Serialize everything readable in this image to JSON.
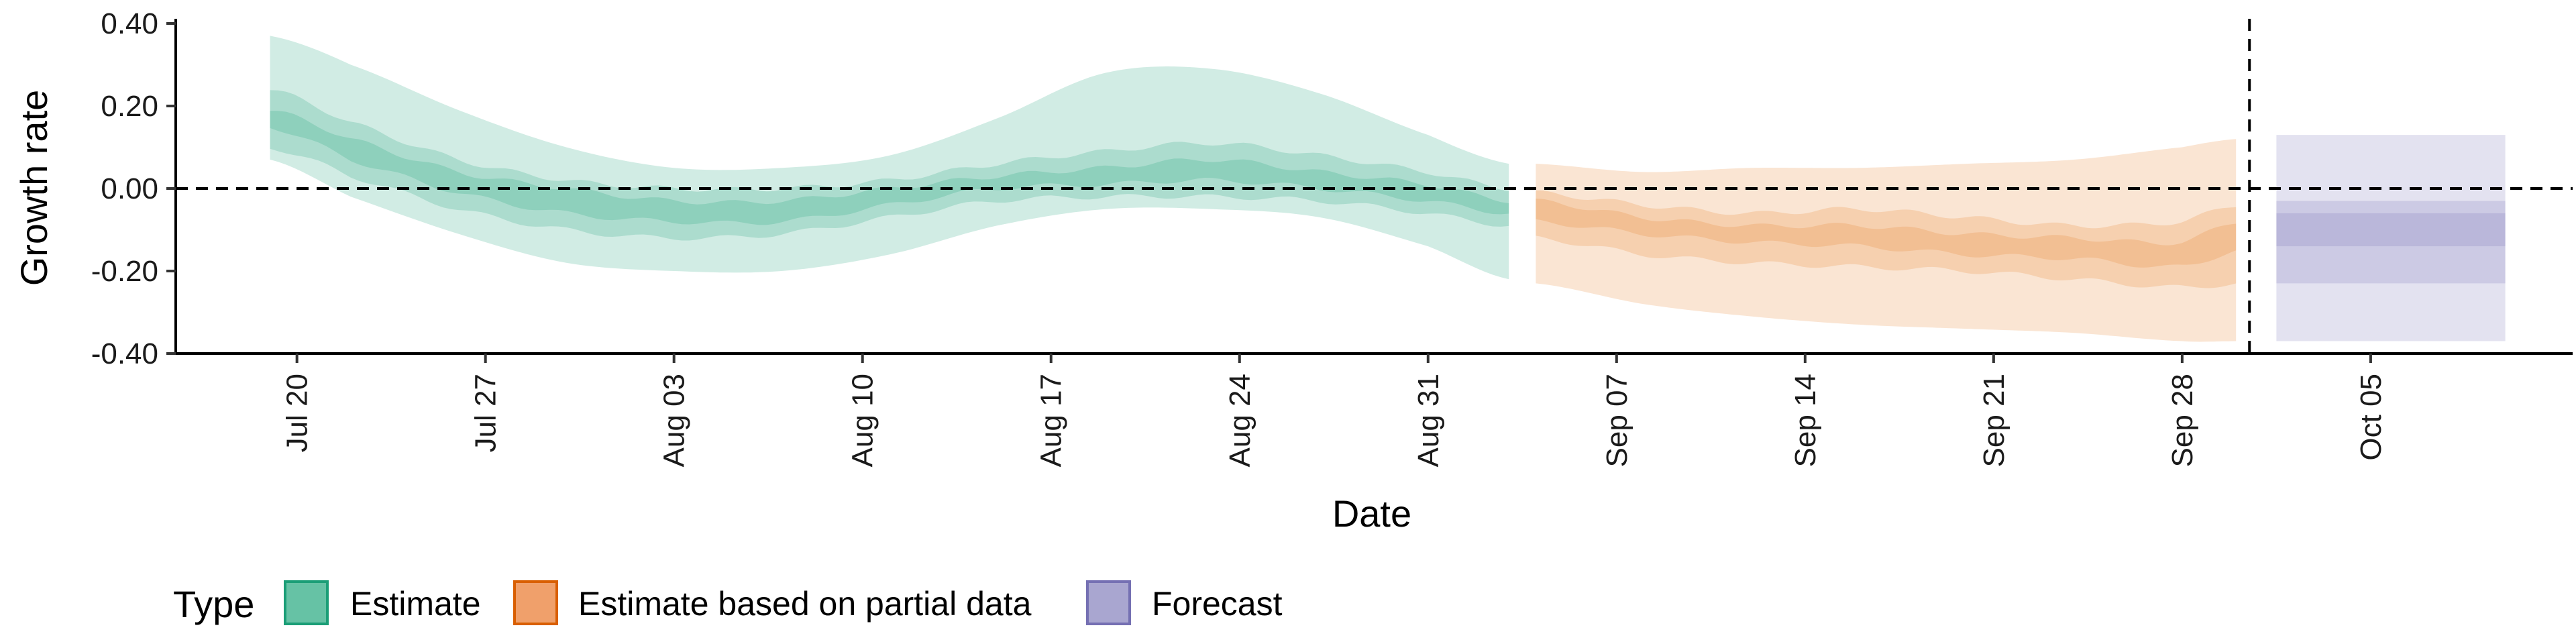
{
  "chart_data": {
    "type": "area",
    "title": "",
    "xlabel": "Date",
    "ylabel": "Growth rate",
    "ylim": [
      -0.4,
      0.4
    ],
    "y_ticks": [
      -0.4,
      -0.2,
      0.0,
      0.2,
      0.4
    ],
    "y_tick_labels": [
      "-0.40",
      "-0.20",
      "0.00",
      "0.20",
      "0.40"
    ],
    "x_tick_dates": [
      20,
      27,
      34,
      41,
      48,
      55,
      62,
      69,
      76,
      83,
      90,
      97
    ],
    "x_tick_labels": [
      "Jul 20",
      "Jul 27",
      "Aug 03",
      "Aug 10",
      "Aug 17",
      "Aug 24",
      "Aug 31",
      "Sep 07",
      "Sep 14",
      "Sep 21",
      "Sep 28",
      "Oct 05"
    ],
    "x_range": [
      15.5,
      104.5
    ],
    "x_unit": "day of July (Jul 1 = 1)",
    "reference_line_y": 0.0,
    "forecast_start_vline": 92.5,
    "legend": {
      "title": "Type",
      "position": "bottom-left",
      "entries": [
        {
          "label": "Estimate",
          "fill": "#66c2a5",
          "stroke": "#1b9e77"
        },
        {
          "label": "Estimate based on partial data",
          "fill": "#f0a06b",
          "stroke": "#d95f02"
        },
        {
          "label": "Forecast",
          "fill": "#a9a6d0",
          "stroke": "#7570b3"
        }
      ]
    },
    "series": [
      {
        "name": "Estimate",
        "band_color": "#1b9e77",
        "kx": [
          19,
          22,
          26,
          30,
          34,
          38,
          42,
          46,
          50,
          54,
          58,
          62,
          65
        ],
        "outer_upper": [
          0.37,
          0.3,
          0.19,
          0.1,
          0.05,
          0.05,
          0.08,
          0.17,
          0.28,
          0.29,
          0.23,
          0.13,
          0.06
        ],
        "outer_lower": [
          0.07,
          -0.02,
          -0.11,
          -0.18,
          -0.2,
          -0.2,
          -0.16,
          -0.09,
          -0.05,
          -0.05,
          -0.07,
          -0.14,
          -0.22
        ],
        "mid_upper": [
          0.24,
          0.16,
          0.07,
          0.02,
          0.0,
          0.0,
          0.02,
          0.06,
          0.09,
          0.11,
          0.08,
          0.04,
          0.0
        ],
        "mid_lower": [
          0.1,
          0.03,
          -0.05,
          -0.1,
          -0.12,
          -0.11,
          -0.07,
          -0.03,
          -0.02,
          -0.02,
          -0.03,
          -0.06,
          -0.09
        ],
        "inner_upper": [
          0.19,
          0.12,
          0.04,
          0.0,
          -0.03,
          -0.03,
          0.0,
          0.03,
          0.05,
          0.07,
          0.04,
          0.01,
          -0.03
        ],
        "inner_lower": [
          0.15,
          0.07,
          -0.01,
          -0.06,
          -0.08,
          -0.08,
          -0.04,
          0.0,
          0.01,
          0.02,
          0.0,
          -0.03,
          -0.06
        ]
      },
      {
        "name": "Estimate based on partial data",
        "band_color": "#e67e22",
        "kx": [
          66,
          70,
          74,
          78,
          82,
          86,
          90,
          92
        ],
        "outer_upper": [
          0.06,
          0.04,
          0.05,
          0.05,
          0.06,
          0.07,
          0.1,
          0.12
        ],
        "outer_lower": [
          -0.23,
          -0.28,
          -0.31,
          -0.33,
          -0.34,
          -0.35,
          -0.37,
          -0.37
        ],
        "mid_upper": [
          -0.01,
          -0.04,
          -0.06,
          -0.05,
          -0.07,
          -0.09,
          -0.08,
          -0.04
        ],
        "mid_lower": [
          -0.12,
          -0.16,
          -0.18,
          -0.19,
          -0.2,
          -0.22,
          -0.24,
          -0.23
        ],
        "inner_upper": [
          -0.03,
          -0.07,
          -0.09,
          -0.09,
          -0.11,
          -0.12,
          -0.13,
          -0.08
        ],
        "inner_lower": [
          -0.08,
          -0.11,
          -0.13,
          -0.14,
          -0.16,
          -0.17,
          -0.19,
          -0.15
        ]
      },
      {
        "name": "Forecast",
        "band_color": "#7570b3",
        "kx": [
          93.5,
          102
        ],
        "outer_upper": [
          0.13,
          0.13
        ],
        "outer_lower": [
          -0.37,
          -0.37
        ],
        "mid_upper": [
          -0.03,
          -0.03
        ],
        "mid_lower": [
          -0.23,
          -0.23
        ],
        "inner_upper": [
          -0.06,
          -0.06
        ],
        "inner_lower": [
          -0.14,
          -0.14
        ]
      }
    ]
  }
}
